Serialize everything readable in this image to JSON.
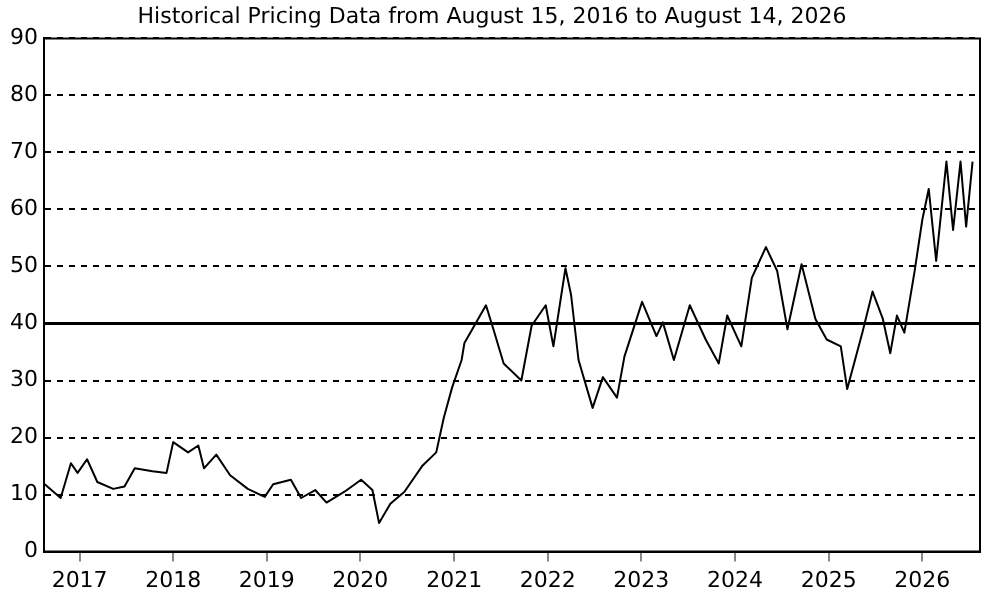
{
  "chart_data": {
    "type": "line",
    "title": "Historical Pricing Data from August 15, 2016 to August 14, 2026",
    "x": [
      "2016-08-18",
      "2016-10-19",
      "2016-11-28",
      "2016-12-24",
      "2017-01-30",
      "2017-03-11",
      "2017-05-12",
      "2017-06-25",
      "2017-08-04",
      "2017-10-12",
      "2017-12-06",
      "2018-01-01",
      "2018-02-28",
      "2018-04-09",
      "2018-05-01",
      "2018-06-18",
      "2018-08-11",
      "2018-10-19",
      "2018-12-24",
      "2019-01-26",
      "2019-04-05",
      "2019-05-15",
      "2019-07-09",
      "2019-08-22",
      "2019-10-31",
      "2020-01-04",
      "2020-02-17",
      "2020-03-14",
      "2020-04-27",
      "2020-06-21",
      "2020-08-29",
      "2020-10-23",
      "2020-11-21",
      "2020-12-24",
      "2021-01-30",
      "2021-02-10",
      "2021-05-05",
      "2021-06-03",
      "2021-07-13",
      "2021-09-20",
      "2021-10-30",
      "2021-12-24",
      "2022-01-23",
      "2022-03-11",
      "2022-04-02",
      "2022-05-01",
      "2022-06-25",
      "2022-08-04",
      "2022-09-28",
      "2022-10-27",
      "2023-01-04",
      "2023-03-01",
      "2023-03-26",
      "2023-05-08",
      "2023-07-09",
      "2023-09-09",
      "2023-10-30",
      "2023-12-02",
      "2024-01-26",
      "2024-03-07",
      "2024-05-01",
      "2024-06-14",
      "2024-07-24",
      "2024-09-17",
      "2024-11-10",
      "2024-12-24",
      "2025-02-17",
      "2025-03-14",
      "2025-05-12",
      "2025-06-21",
      "2025-07-31",
      "2025-08-29",
      "2025-09-24",
      "2025-10-23",
      "2025-12-02",
      "2026-01-01",
      "2026-01-26",
      "2026-02-24",
      "2026-04-05",
      "2026-05-01",
      "2026-05-30",
      "2026-06-21",
      "2026-07-16"
    ],
    "series": [
      {
        "color": "#000000",
        "values": [
          11.8,
          9.4,
          15.5,
          13.8,
          16.2,
          12.2,
          11,
          11.4,
          14.6,
          14.1,
          13.8,
          19.2,
          17.4,
          18.6,
          14.6,
          17,
          13.4,
          11,
          9.6,
          11.8,
          12.6,
          9.4,
          10.8,
          8.6,
          10.5,
          12.6,
          10.8,
          5,
          8.4,
          10.5,
          15,
          17.4,
          23.4,
          28.8,
          33.6,
          36.6,
          43.2,
          39,
          33,
          30,
          39.6,
          43.2,
          36,
          49.7,
          45,
          33.6,
          25.2,
          30.6,
          27,
          34.2,
          43.8,
          37.8,
          40.2,
          33.6,
          43.2,
          37.2,
          33,
          41.4,
          36,
          48,
          53.4,
          49.2,
          39,
          50.4,
          40.8,
          37.2,
          36,
          28.5,
          38.4,
          45.6,
          40.8,
          34.8,
          41.4,
          38.4,
          49.2,
          58.2,
          63.6,
          51,
          68.4,
          56.4,
          68.4,
          57,
          68.4
        ]
      }
    ],
    "xlim": [
      "2016-08-15",
      "2026-08-14"
    ],
    "xticks": [
      {
        "value": "2017-01-01",
        "label": "2017"
      },
      {
        "value": "2018-01-01",
        "label": "2018"
      },
      {
        "value": "2019-01-01",
        "label": "2019"
      },
      {
        "value": "2020-01-01",
        "label": "2020"
      },
      {
        "value": "2021-01-01",
        "label": "2021"
      },
      {
        "value": "2022-01-01",
        "label": "2022"
      },
      {
        "value": "2023-01-01",
        "label": "2023"
      },
      {
        "value": "2024-01-01",
        "label": "2024"
      },
      {
        "value": "2025-01-01",
        "label": "2025"
      },
      {
        "value": "2026-01-01",
        "label": "2026"
      }
    ],
    "ylim": [
      0,
      90
    ],
    "yticks": [
      0,
      10,
      20,
      30,
      40,
      50,
      60,
      70,
      80,
      90
    ],
    "grid": "y",
    "legend": false,
    "marker": "none",
    "line_style": "solid",
    "ref_lines": [
      {
        "axis": "y",
        "value": 40,
        "color": "#000000"
      }
    ]
  }
}
